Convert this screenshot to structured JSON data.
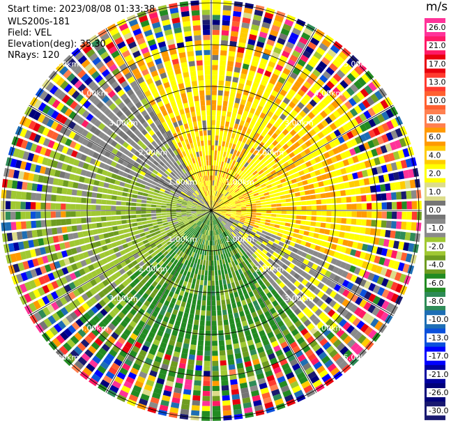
{
  "header": {
    "start_time": "Start time: 2023/08/08 01:33:38",
    "instrument": "WLS200s-181",
    "field": "Field: VEL",
    "elevation": "Elevation(deg): 35.30",
    "nrays": "NRays: 120"
  },
  "chart_data": {
    "type": "heatmap",
    "projection": "polar-ppi",
    "nrays": 120,
    "range_rings_km": [
      1.0,
      2.0,
      3.0,
      4.0,
      5.0
    ],
    "range_ring_labels": [
      "1.00km",
      "2.00km",
      "3.00km",
      "4.00km",
      "5.00km"
    ],
    "max_range_km": 5.0,
    "colorbar": {
      "unit": "m/s",
      "ticks": [
        "26.0",
        "21.0",
        "17.0",
        "13.0",
        "10.0",
        "8.0",
        "6.0",
        "4.0",
        "2.0",
        "1.0",
        "0.0",
        "-1.0",
        "-2.0",
        "-4.0",
        "-6.0",
        "-8.0",
        "-10.0",
        "-13.0",
        "-17.0",
        "-21.0",
        "-26.0",
        "-30.0"
      ],
      "colors": [
        "#ff3399",
        "#ff1a66",
        "#e8000d",
        "#ff3b2f",
        "#ff6030",
        "#ff8050",
        "#ff9a00",
        "#ffcc00",
        "#ffff00",
        "#dcdc8a",
        "#757575",
        "#8a8a8a",
        "#a0c832",
        "#6e9c20",
        "#228b22",
        "#2e8b57",
        "#1e6eb4",
        "#0a50dc",
        "#0000ff",
        "#0000a0",
        "#00007a",
        "#191970"
      ]
    },
    "sectors": [
      {
        "name": "north",
        "azimuth_deg": [
          330,
          45
        ],
        "dominant": "2.0 to 6.0",
        "mix": [
          "#ffff00",
          "#ff9a00",
          "#ffcc00",
          "#757575"
        ]
      },
      {
        "name": "east",
        "azimuth_deg": [
          45,
          110
        ],
        "dominant": "2.0 to 6.0",
        "mix": [
          "#ffff00",
          "#ff9a00",
          "#ffcc00"
        ]
      },
      {
        "name": "southeast",
        "azimuth_deg": [
          110,
          140
        ],
        "dominant": "-1.0 to 2.0",
        "mix": [
          "#8a8a8a",
          "#ffff00",
          "#757575",
          "#a0c832"
        ]
      },
      {
        "name": "south",
        "azimuth_deg": [
          140,
          230
        ],
        "dominant": "-2.0 to -8.0",
        "mix": [
          "#228b22",
          "#6e9c20",
          "#a0c832",
          "#2e8b57"
        ]
      },
      {
        "name": "west",
        "azimuth_deg": [
          230,
          290
        ],
        "dominant": "-1.0 to -4.0",
        "mix": [
          "#a0c832",
          "#6e9c20",
          "#8a8a8a"
        ]
      },
      {
        "name": "northwest",
        "azimuth_deg": [
          290,
          330
        ],
        "dominant": "-1.0 to 1.0",
        "mix": [
          "#8a8a8a",
          "#757575",
          "#a0c832",
          "#ffff00"
        ]
      }
    ],
    "outer_noise_start_km": 4.0
  }
}
